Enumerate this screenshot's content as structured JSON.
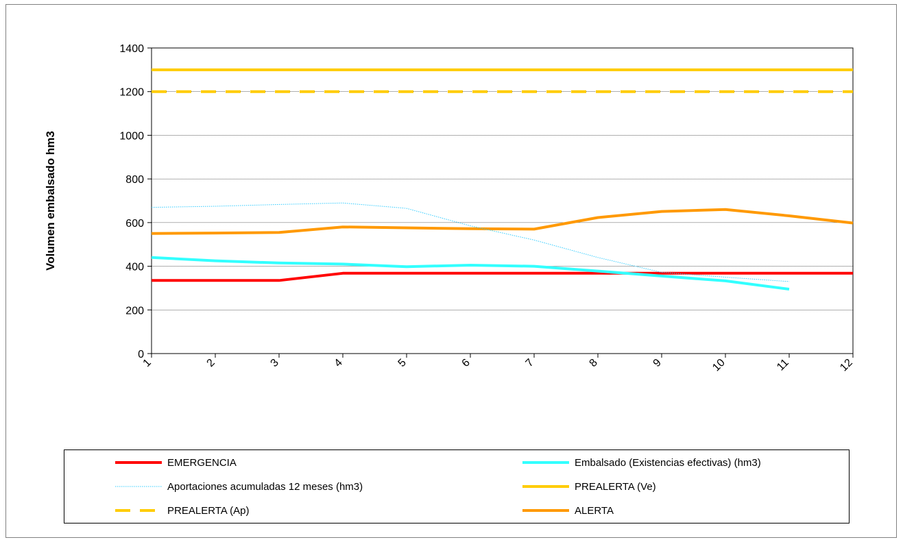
{
  "chart_data": {
    "type": "line",
    "title": "",
    "xlabel": "",
    "ylabel": "Volumen embalsado hm3",
    "ylim": [
      0,
      1400
    ],
    "yticks": [
      0,
      200,
      400,
      600,
      800,
      1000,
      1200,
      1400
    ],
    "categories": [
      "1",
      "2",
      "3",
      "4",
      "5",
      "6",
      "7",
      "8",
      "9",
      "10",
      "11",
      "12"
    ],
    "grid": true,
    "legend_position": "bottom",
    "series": [
      {
        "name": "EMERGENCIA",
        "color": "#ff0000",
        "style": "solid",
        "width": 4,
        "values": [
          335,
          335,
          335,
          368,
          368,
          368,
          368,
          368,
          368,
          368,
          368,
          368
        ]
      },
      {
        "name": "Embalsado (Existencias efectivas) (hm3)",
        "color": "#33ffff",
        "style": "solid",
        "width": 4,
        "values": [
          440,
          425,
          415,
          410,
          398,
          405,
          400,
          378,
          355,
          333,
          295,
          null
        ]
      },
      {
        "name": "Aportaciones acumuladas 12 meses (hm3)",
        "color": "#33ccff",
        "style": "dotted",
        "width": 1,
        "values": [
          670,
          675,
          683,
          690,
          665,
          585,
          520,
          440,
          372,
          350,
          330,
          null
        ]
      },
      {
        "name": "PREALERTA (Ve)",
        "color": "#ffcc00",
        "style": "solid",
        "width": 4,
        "values": [
          1300,
          1300,
          1300,
          1300,
          1300,
          1300,
          1300,
          1300,
          1300,
          1300,
          1300,
          1300
        ]
      },
      {
        "name": "PREALERTA (Ap)",
        "color": "#ffcc00",
        "style": "dashed",
        "width": 4,
        "values": [
          1200,
          1200,
          1200,
          1200,
          1200,
          1200,
          1200,
          1200,
          1200,
          1200,
          1200,
          1200
        ]
      },
      {
        "name": "ALERTA",
        "color": "#ff9900",
        "style": "solid",
        "width": 4,
        "values": [
          550,
          552,
          555,
          580,
          576,
          572,
          570,
          623,
          651,
          660,
          631,
          598
        ]
      }
    ]
  }
}
